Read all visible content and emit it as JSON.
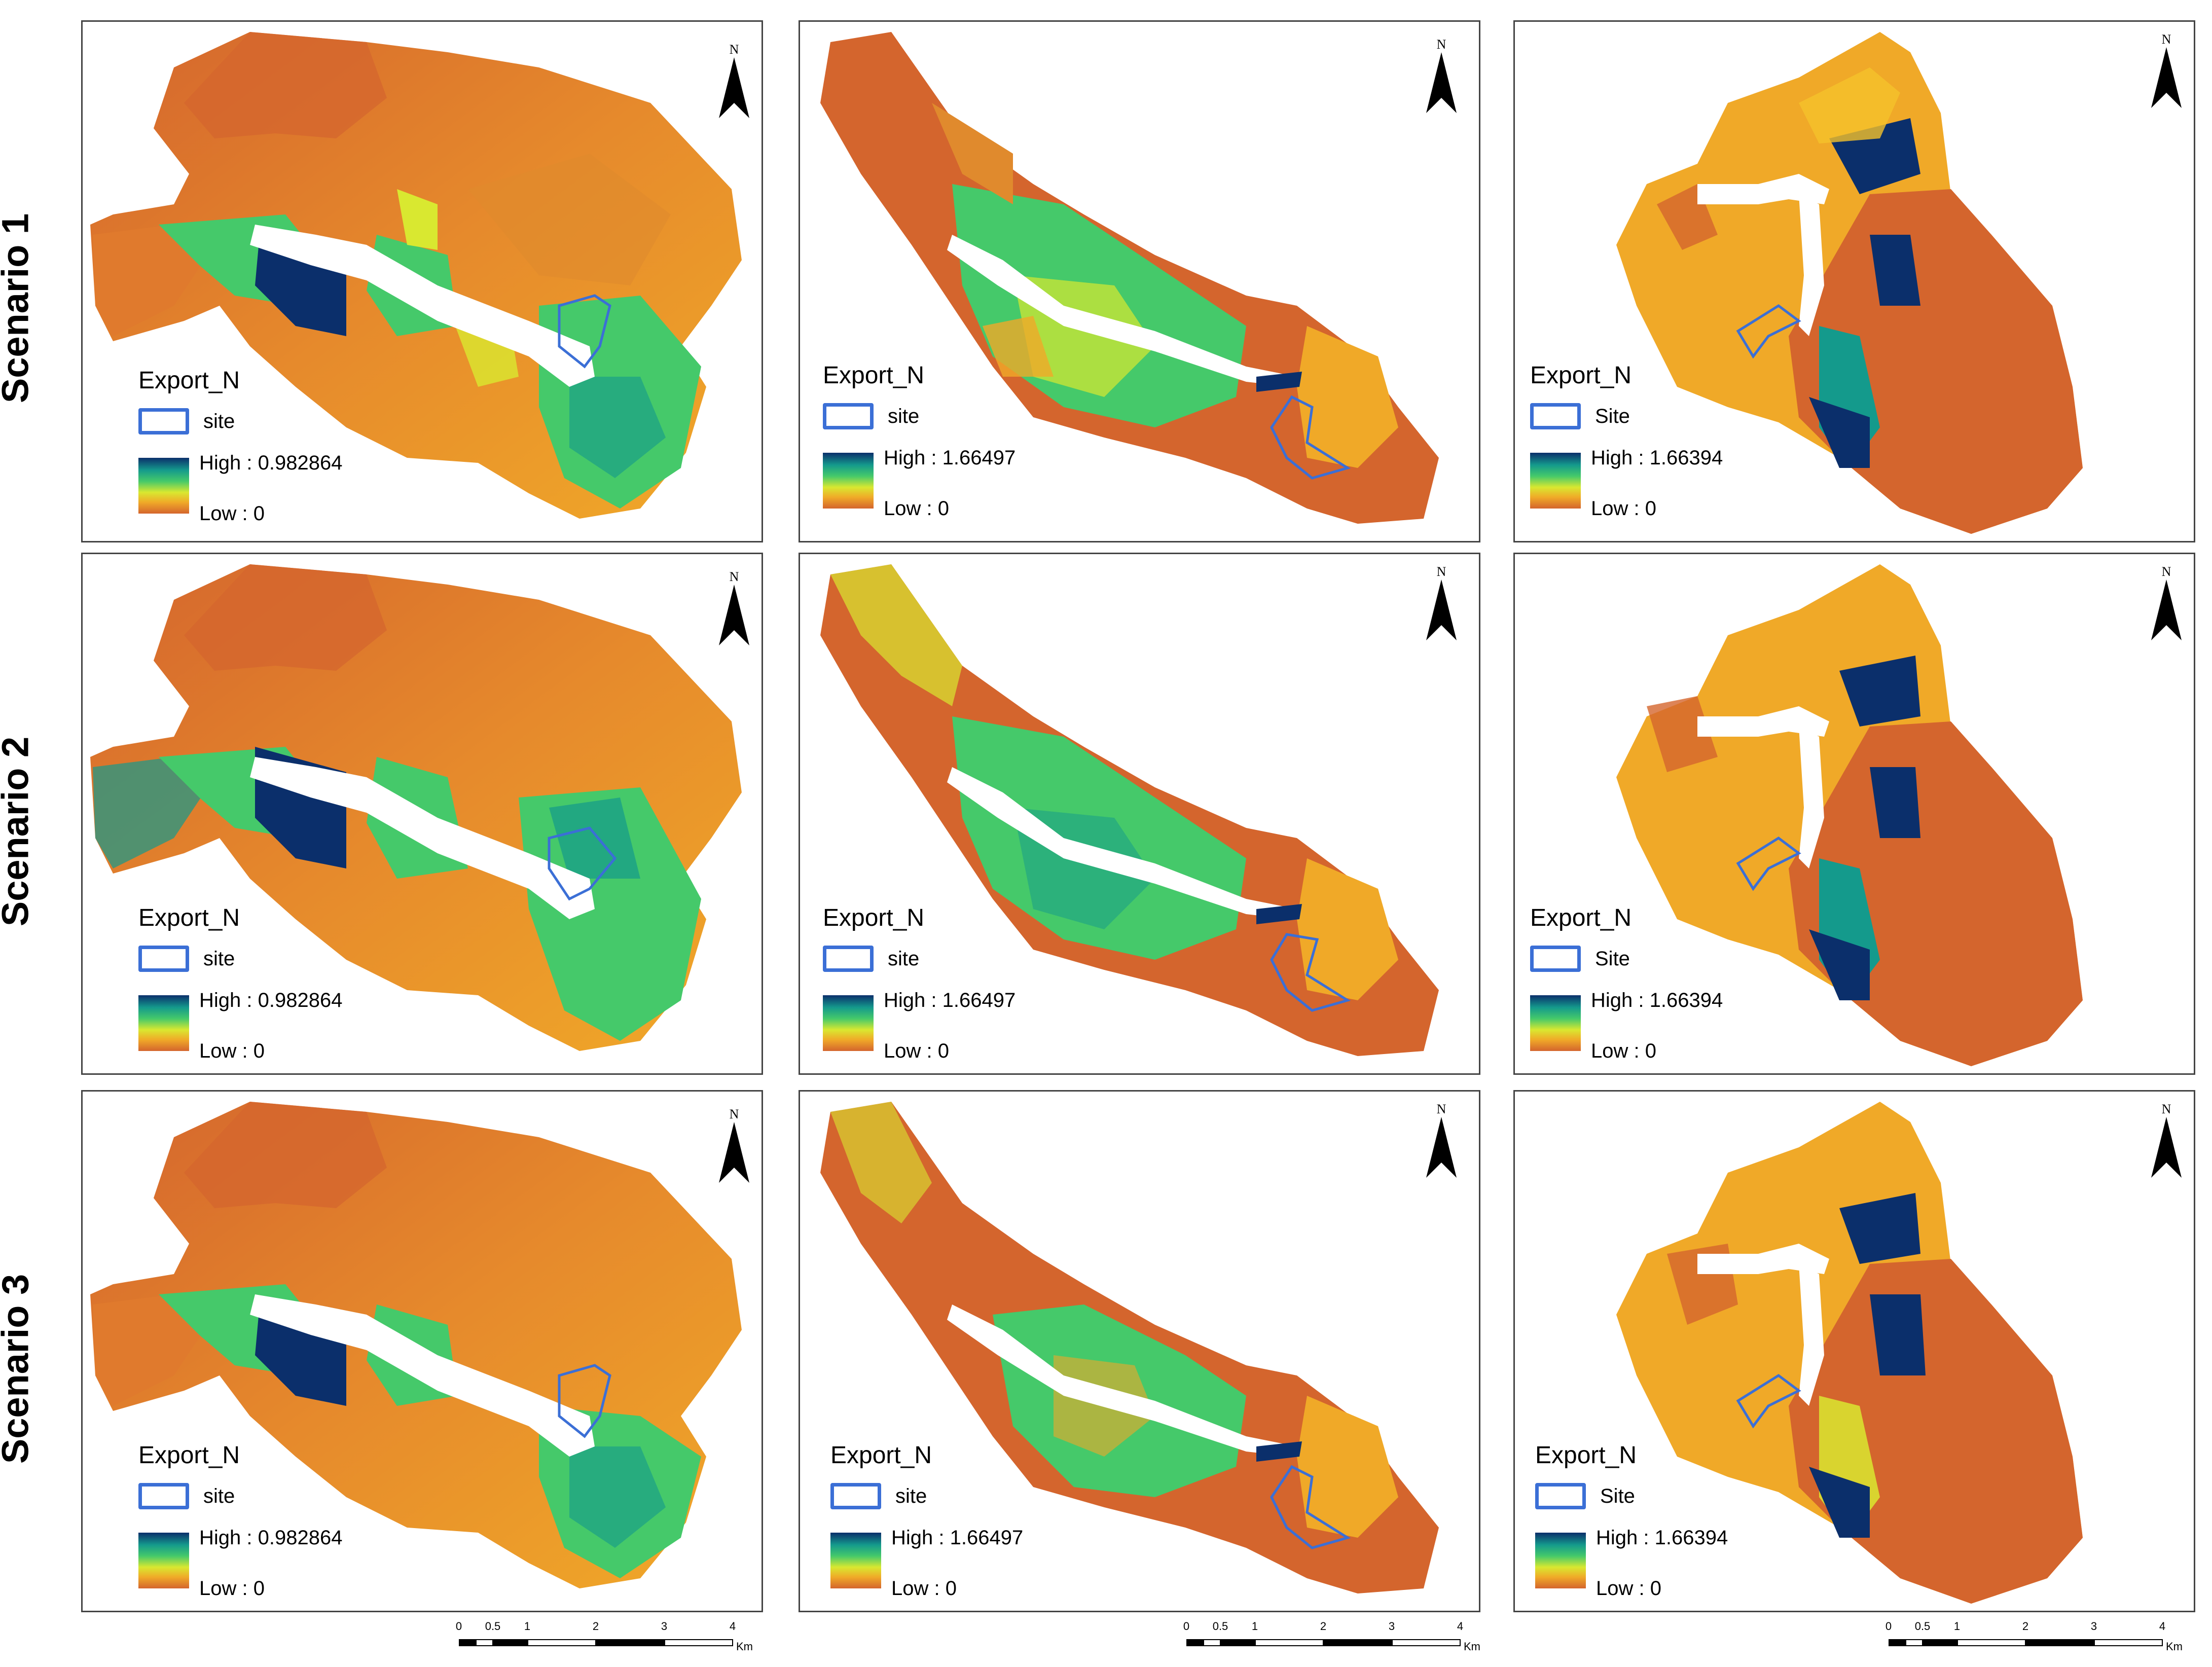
{
  "rows": [
    {
      "label": "Scenario 1"
    },
    {
      "label": "Scenario 2"
    },
    {
      "label": "Scenario 3"
    }
  ],
  "north_label": "N",
  "legends": {
    "col1": {
      "title": "Export_N",
      "site": "site",
      "high": "High : 0.982864",
      "low": "Low : 0"
    },
    "col2": {
      "title": "Export_N",
      "site": "site",
      "high": "High : 1.66497",
      "low": "Low : 0"
    },
    "col3": {
      "title": "Export_N",
      "site": "Site",
      "high": "High : 1.66394",
      "low": "Low : 0"
    }
  },
  "scalebar": {
    "ticks": [
      "0",
      "0.5",
      "1",
      "2",
      "3",
      "4"
    ],
    "unit": "Km"
  },
  "colors": {
    "high": "#0b2f6b",
    "mid_high": "#149a8c",
    "mid": "#45c96a",
    "mid_low": "#d9e830",
    "low_mid": "#f0a928",
    "low": "#d4652d",
    "river": "#ffffff",
    "site_outline": "#3b6fd6",
    "panel_border": "#444444"
  }
}
